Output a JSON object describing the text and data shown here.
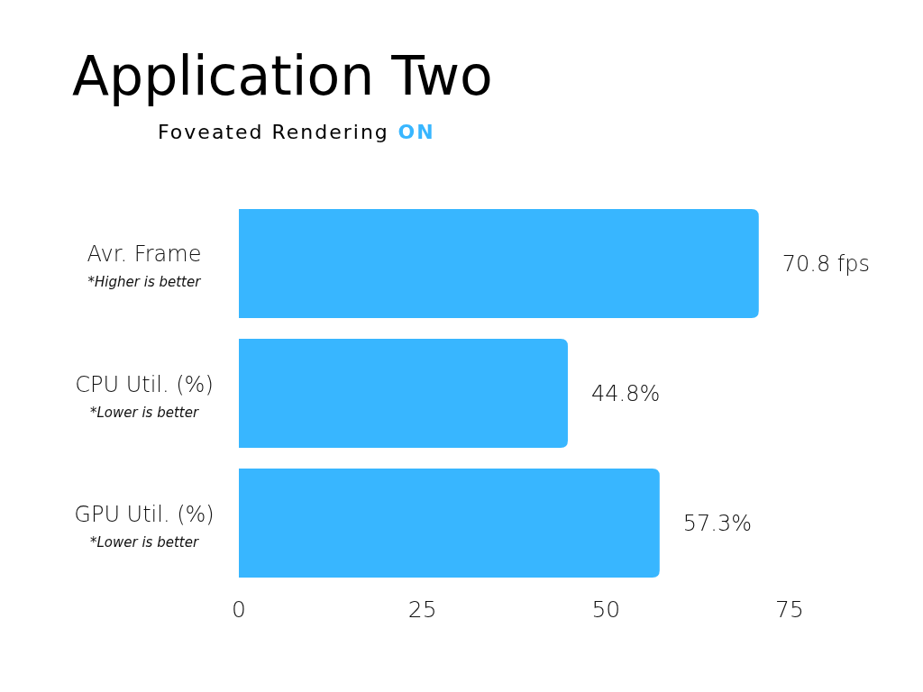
{
  "chart_data": {
    "type": "bar",
    "orientation": "horizontal",
    "title": "Application Two",
    "subtitle": "Foveated Rendering ON",
    "categories": [
      "Avr. Frame\n*Higher is better",
      "CPU Util. (%)\n*Lower is better",
      "GPU Util. (%)\n*Lower is better"
    ],
    "values": [
      70.8,
      44.8,
      57.3
    ],
    "color": "#38b6ff",
    "value_labels": [
      "70.8 fps",
      "44.8%",
      "57.3%"
    ],
    "xlim": [
      0,
      75
    ],
    "xticks": [
      0,
      25,
      50,
      75
    ]
  }
}
